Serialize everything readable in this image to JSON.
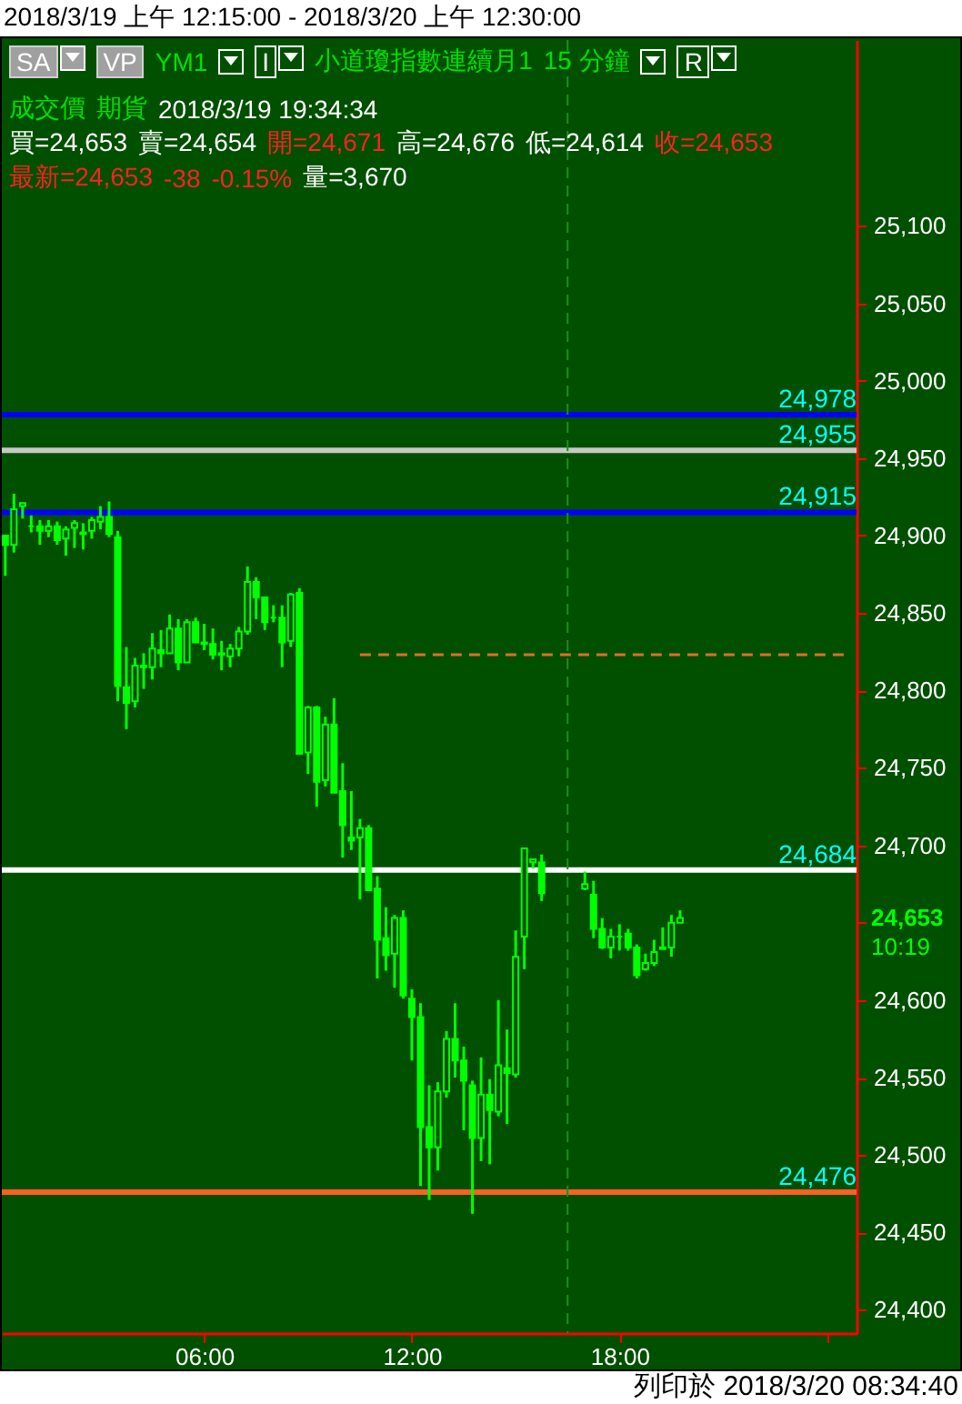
{
  "chart_data": {
    "type": "candlestick",
    "title": "2018/3/19 上午 12:15:00 - 2018/3/20 上午 12:30:00",
    "annotations": [
      "SA",
      "VP",
      "YM1",
      "I",
      "R",
      "小道瓊指數連續月1",
      "15 分鐘",
      "成交價",
      "期貨",
      "2018/3/19  19:34:34",
      "買=24,653",
      "賣=24,654",
      "開=24,671",
      "高=24,676",
      "低=24,614",
      "收=24,653",
      "最新=24,653",
      "-38",
      "-0.15%",
      "量=3,670",
      "24,653",
      "10:19",
      "列印於 2018/3/20 08:34:40"
    ],
    "x": [
      0.25,
      0.5,
      0.75,
      1,
      1.25,
      1.5,
      1.75,
      2,
      2.25,
      2.5,
      2.75,
      3,
      3.25,
      3.5,
      3.75,
      4,
      4.25,
      4.5,
      4.75,
      5,
      5.25,
      5.5,
      5.75,
      6,
      6.25,
      6.5,
      6.75,
      7,
      7.25,
      7.5,
      7.75,
      8,
      8.25,
      8.5,
      8.75,
      9,
      9.25,
      9.5,
      9.75,
      10,
      10.25,
      10.5,
      10.75,
      11,
      11.25,
      11.5,
      11.75,
      12,
      12.25,
      12.5,
      12.75,
      13,
      13.25,
      13.5,
      13.75,
      14,
      14.25,
      14.5,
      14.75,
      15,
      15.25,
      15.5,
      15.75,
      17,
      17.25,
      17.5,
      17.75,
      18,
      18.25,
      18.5,
      18.75,
      19,
      19.25,
      19.5,
      19.75
    ],
    "color": "#00ff00",
    "ohlc": [
      [
        24900,
        24900,
        24874,
        24894
      ],
      [
        24894,
        24927,
        24889,
        24917
      ],
      [
        24919,
        24921,
        24911,
        24921
      ],
      [
        24906,
        24913,
        24902,
        24906
      ],
      [
        24906,
        24910,
        24894,
        24903
      ],
      [
        24903,
        24910,
        24899,
        24906
      ],
      [
        24906,
        24909,
        24894,
        24897
      ],
      [
        24898,
        24906,
        24887,
        24904
      ],
      [
        24905,
        24910,
        24892,
        24908
      ],
      [
        24901,
        24908,
        24891,
        24902
      ],
      [
        24903,
        24912,
        24898,
        24910
      ],
      [
        24909,
        24919,
        24904,
        24912
      ],
      [
        24912,
        24922,
        24899,
        24901
      ],
      [
        24899,
        24903,
        24793,
        24803
      ],
      [
        24802,
        24828,
        24775,
        24792
      ],
      [
        24793,
        24821,
        24789,
        24816
      ],
      [
        24816,
        24824,
        24801,
        24815
      ],
      [
        24815,
        24837,
        24807,
        24827
      ],
      [
        24826,
        24839,
        24815,
        24824
      ],
      [
        24824,
        24849,
        24824,
        24840
      ],
      [
        24840,
        24846,
        24813,
        24818
      ],
      [
        24818,
        24846,
        24818,
        24844
      ],
      [
        24844,
        24847,
        24831,
        24831
      ],
      [
        24831,
        24843,
        24826,
        24830
      ],
      [
        24830,
        24840,
        24820,
        24823
      ],
      [
        24823,
        24832,
        24813,
        24824
      ],
      [
        24822,
        24830,
        24815,
        24827
      ],
      [
        24827,
        24841,
        24822,
        24838
      ],
      [
        24838,
        24880,
        24836,
        24870
      ],
      [
        24870,
        24873,
        24846,
        24860
      ],
      [
        24860,
        24860,
        24839,
        24844
      ],
      [
        24847,
        24855,
        24844,
        24847
      ],
      [
        24847,
        24855,
        24815,
        24831
      ],
      [
        24832,
        24863,
        24828,
        24862
      ],
      [
        24863,
        24866,
        24759,
        24759
      ],
      [
        24760,
        24790,
        24746,
        24789
      ],
      [
        24789,
        24790,
        24725,
        24741
      ],
      [
        24742,
        24783,
        24738,
        24778
      ],
      [
        24778,
        24795,
        24734,
        24734
      ],
      [
        24735,
        24753,
        24692,
        24713
      ],
      [
        24705,
        24735,
        24697,
        24703
      ],
      [
        24705,
        24717,
        24665,
        24711
      ],
      [
        24711,
        24713,
        24671,
        24671
      ],
      [
        24672,
        24680,
        24614,
        24639
      ],
      [
        24640,
        24660,
        24619,
        24629
      ],
      [
        24630,
        24655,
        24608,
        24653
      ],
      [
        24653,
        24658,
        24601,
        24603
      ],
      [
        24601,
        24607,
        24561,
        24589
      ],
      [
        24589,
        24598,
        24480,
        24518
      ],
      [
        24518,
        24545,
        24471,
        24505
      ],
      [
        24505,
        24547,
        24490,
        24541
      ],
      [
        24541,
        24580,
        24537,
        24575
      ],
      [
        24575,
        24598,
        24550,
        24561
      ],
      [
        24561,
        24570,
        24516,
        24548
      ],
      [
        24545,
        24548,
        24462,
        24511
      ],
      [
        24511,
        24563,
        24496,
        24539
      ],
      [
        24539,
        24549,
        24494,
        24529
      ],
      [
        24528,
        24600,
        24525,
        24558
      ],
      [
        24556,
        24581,
        24520,
        24553
      ],
      [
        24552,
        24645,
        24550,
        24628
      ],
      [
        24641,
        24698,
        24620,
        24698
      ],
      [
        24689,
        24691,
        24685,
        24691
      ],
      [
        24689,
        24694,
        24664,
        24669
      ],
      [
        24672,
        24683,
        24671,
        24675
      ],
      [
        24668,
        24677,
        24640,
        24646
      ],
      [
        24646,
        24653,
        24633,
        24634
      ],
      [
        24634,
        24646,
        24627,
        24641
      ],
      [
        24641,
        24649,
        24632,
        24641
      ],
      [
        24643,
        24646,
        24632,
        24634
      ],
      [
        24634,
        24636,
        24614,
        24616
      ],
      [
        24620,
        24630,
        24619,
        24624
      ],
      [
        24624,
        24639,
        24622,
        24631
      ],
      [
        24633,
        24647,
        24633,
        24634
      ],
      [
        24634,
        24655,
        24628,
        24650
      ],
      [
        24650,
        24658,
        24650,
        24653
      ]
    ],
    "series": [
      {
        "type": "line",
        "x": [
          10.5,
          24.5
        ],
        "values": [
          24823,
          24823
        ],
        "color": "#e07020",
        "line_style": "dashed"
      }
    ],
    "ref_lines": [
      {
        "axis": "y",
        "value": 24978,
        "label": "24,978",
        "color": "#0000ff"
      },
      {
        "axis": "y",
        "value": 24955,
        "label": "24,955",
        "color": "#c8c8c8"
      },
      {
        "axis": "y",
        "value": 24915,
        "label": "24,915",
        "color": "#0000ff"
      },
      {
        "axis": "y",
        "value": 24684,
        "label": "24,684",
        "color": "#ffffff"
      },
      {
        "axis": "y",
        "value": 24476,
        "label": "24,476",
        "color": "#ff6020"
      },
      {
        "axis": "x",
        "value": 16.5,
        "color": "#1e8c1e",
        "line_style": "dashed"
      }
    ],
    "xlim": [
      0.15,
      24.85
    ],
    "xticks": [
      {
        "value": 6,
        "label": "06:00"
      },
      {
        "value": 12,
        "label": "12:00"
      },
      {
        "value": 18,
        "label": "18:00"
      },
      {
        "value": 24,
        "label": null
      }
    ],
    "ylim": [
      24385,
      25220
    ],
    "yticks": [
      {
        "value": 24400,
        "label": "24,400"
      },
      {
        "value": 24450,
        "label": "24,450"
      },
      {
        "value": 24500,
        "label": "24,500"
      },
      {
        "value": 24550,
        "label": "24,550"
      },
      {
        "value": 24600,
        "label": "24,600"
      },
      {
        "value": 24650,
        "label": null
      },
      {
        "value": 24700,
        "label": "24,700"
      },
      {
        "value": 24750,
        "label": "24,750"
      },
      {
        "value": 24800,
        "label": "24,800"
      },
      {
        "value": 24850,
        "label": "24,850"
      },
      {
        "value": 24900,
        "label": "24,900"
      },
      {
        "value": 24950,
        "label": "24,950"
      },
      {
        "value": 25000,
        "label": "25,000"
      },
      {
        "value": 25050,
        "label": "25,050"
      },
      {
        "value": 25100,
        "label": "25,100"
      }
    ]
  }
}
